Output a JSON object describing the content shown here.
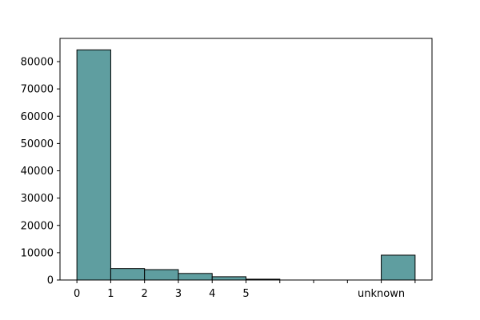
{
  "chart_data": {
    "type": "bar",
    "title": "",
    "xlabel": "",
    "ylabel": "",
    "bar_color": "#5f9ea0",
    "edge_color": "#000000",
    "grid": false,
    "legend": "none",
    "xlim": [
      -0.5,
      10.5
    ],
    "ylim": [
      0,
      88500
    ],
    "x_ticks": [
      {
        "pos": 0,
        "label": "0"
      },
      {
        "pos": 1,
        "label": "1"
      },
      {
        "pos": 2,
        "label": "2"
      },
      {
        "pos": 3,
        "label": "3"
      },
      {
        "pos": 4,
        "label": "4"
      },
      {
        "pos": 5,
        "label": "5"
      },
      {
        "pos": 6,
        "label": ""
      },
      {
        "pos": 7,
        "label": ""
      },
      {
        "pos": 8,
        "label": ""
      },
      {
        "pos": 9,
        "label": "unknown"
      },
      {
        "pos": 10,
        "label": ""
      }
    ],
    "y_ticks": [
      {
        "value": 0,
        "label": "0"
      },
      {
        "value": 10000,
        "label": "10000"
      },
      {
        "value": 20000,
        "label": "20000"
      },
      {
        "value": 30000,
        "label": "30000"
      },
      {
        "value": 40000,
        "label": "40000"
      },
      {
        "value": 50000,
        "label": "50000"
      },
      {
        "value": 60000,
        "label": "60000"
      },
      {
        "value": 70000,
        "label": "70000"
      },
      {
        "value": 80000,
        "label": "80000"
      }
    ],
    "bins": [
      {
        "start": 0,
        "end": 1,
        "count": 84300
      },
      {
        "start": 1,
        "end": 2,
        "count": 4200
      },
      {
        "start": 2,
        "end": 3,
        "count": 3800
      },
      {
        "start": 3,
        "end": 4,
        "count": 2400
      },
      {
        "start": 4,
        "end": 5,
        "count": 1200
      },
      {
        "start": 5,
        "end": 6,
        "count": 300
      },
      {
        "start": 6,
        "end": 7,
        "count": 0
      },
      {
        "start": 7,
        "end": 8,
        "count": 0
      },
      {
        "start": 8,
        "end": 9,
        "count": 0
      },
      {
        "start": 9,
        "end": 10,
        "count": 9100
      }
    ]
  }
}
